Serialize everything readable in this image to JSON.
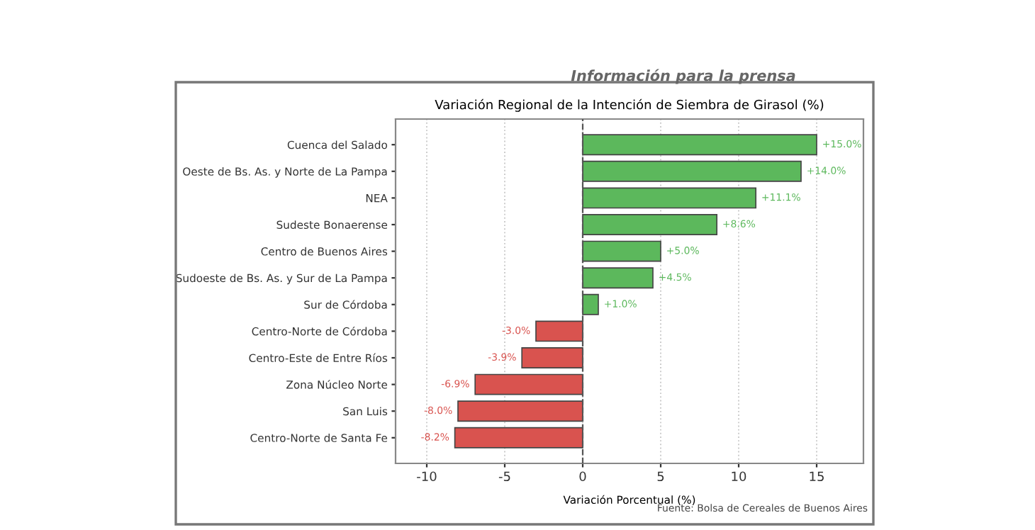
{
  "chart_data": {
    "type": "bar",
    "orientation": "horizontal",
    "title": "Variación Regional de la Intención de Siembra de Girasol (%)",
    "xlabel": "Variación Porcentual (%)",
    "annotations": [
      "Información para la prensa",
      "Fuente: Bolsa de Cereales de Buenos Aires"
    ],
    "categories": [
      "Cuenca del Salado",
      "Oeste de Bs. As. y Norte de La Pampa",
      "NEA",
      "Sudeste Bonaerense",
      "Centro de Buenos Aires",
      "Sudoeste de Bs. As. y Sur de La Pampa",
      "Sur de Córdoba",
      "Centro-Norte de Córdoba",
      "Centro-Este de Entre Ríos",
      "Zona Núcleo Norte",
      "San Luis",
      "Centro-Norte de Santa Fe"
    ],
    "values": [
      15.0,
      14.0,
      11.1,
      8.6,
      5.0,
      4.5,
      1.0,
      -3.0,
      -3.9,
      -6.9,
      -8.0,
      -8.2
    ],
    "value_labels": [
      "+15.0%",
      "+14.0%",
      "+11.1%",
      "+8.6%",
      "+5.0%",
      "+4.5%",
      "+1.0%",
      "-3.0%",
      "-3.9%",
      "-6.9%",
      "-8.0%",
      "-8.2%"
    ],
    "colors": [
      "#5cb85c",
      "#5cb85c",
      "#5cb85c",
      "#5cb85c",
      "#5cb85c",
      "#5cb85c",
      "#5cb85c",
      "#d9534f",
      "#d9534f",
      "#d9534f",
      "#d9534f",
      "#d9534f"
    ],
    "xlim": [
      -12,
      18
    ],
    "xticks": [
      -10,
      -5,
      0,
      5,
      10,
      15
    ],
    "ref_lines": [
      {
        "axis": "x",
        "value": 0,
        "color": "#555555",
        "line_style": "dashed"
      }
    ],
    "grid": "x"
  }
}
